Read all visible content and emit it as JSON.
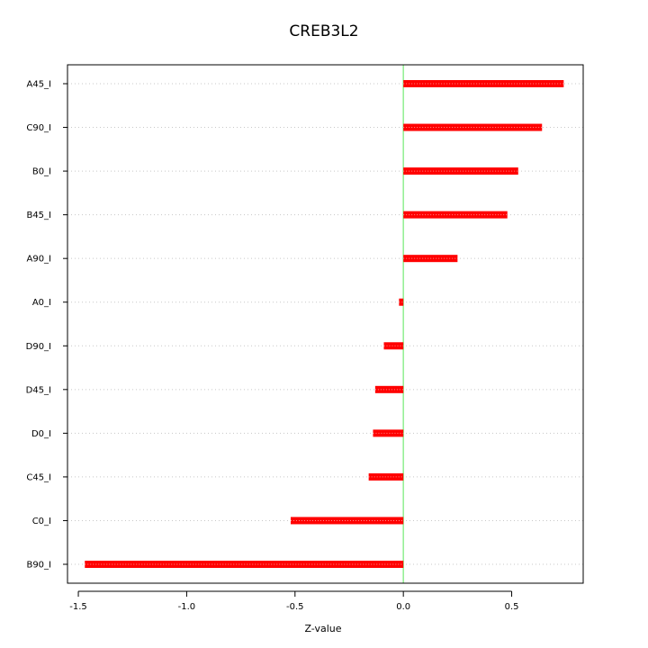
{
  "chart_data": {
    "type": "bar",
    "orientation": "horizontal",
    "title": "CREB3L2",
    "xlabel": "Z-value",
    "ylabel": "",
    "categories": [
      "A45_I",
      "C90_I",
      "B0_I",
      "B45_I",
      "A90_I",
      "A0_I",
      "D90_I",
      "D45_I",
      "D0_I",
      "C45_I",
      "C0_I",
      "B90_I"
    ],
    "values": [
      0.74,
      0.64,
      0.53,
      0.48,
      0.25,
      -0.02,
      -0.09,
      -0.13,
      -0.14,
      -0.16,
      -0.52,
      -1.47
    ],
    "xlim": [
      -1.55,
      0.83
    ],
    "xticks": [
      -1.5,
      -1.0,
      -0.5,
      0.0,
      0.5
    ],
    "xtick_labels": [
      "-1.5",
      "-1.0",
      "-0.5",
      "0.0",
      "0.5"
    ],
    "grid": "horizontal dotted",
    "reference_line": 0,
    "bar_color": "#ff0000",
    "reference_line_color": "#90ee90"
  }
}
